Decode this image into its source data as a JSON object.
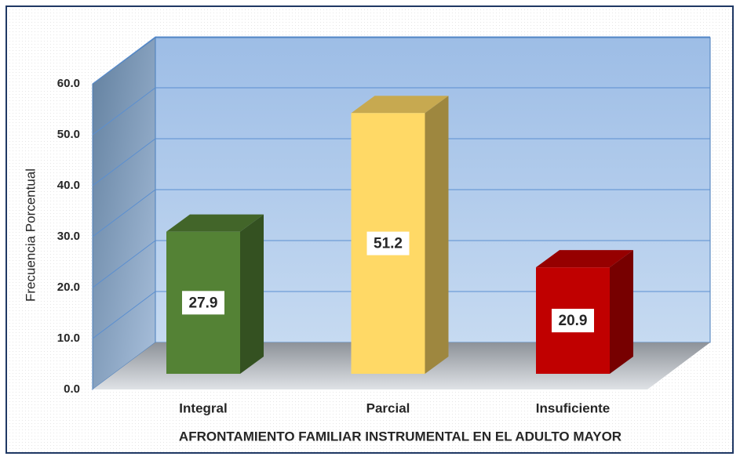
{
  "chart_data": {
    "type": "bar3d",
    "categories": [
      "Integral",
      "Parcial",
      "Insuficiente"
    ],
    "values": [
      27.9,
      51.2,
      20.9
    ],
    "colors": [
      "#548235",
      "#ffd966",
      "#c00000"
    ],
    "ylabel": "Frecuencia Porcentual",
    "xlabel": "AFRONTAMIENTO  FAMILIAR  INSTRUMENTAL  EN EL ADULTO MAYOR",
    "ylim": [
      0,
      60
    ],
    "yticks": [
      {
        "value": 0,
        "label": "0.0"
      },
      {
        "value": 10,
        "label": "10.0"
      },
      {
        "value": 20,
        "label": "20.0"
      },
      {
        "value": 30,
        "label": "30.0"
      },
      {
        "value": 40,
        "label": "40.0"
      },
      {
        "value": 50,
        "label": "50.0"
      },
      {
        "value": 60,
        "label": "60.0"
      }
    ],
    "grid": true
  }
}
